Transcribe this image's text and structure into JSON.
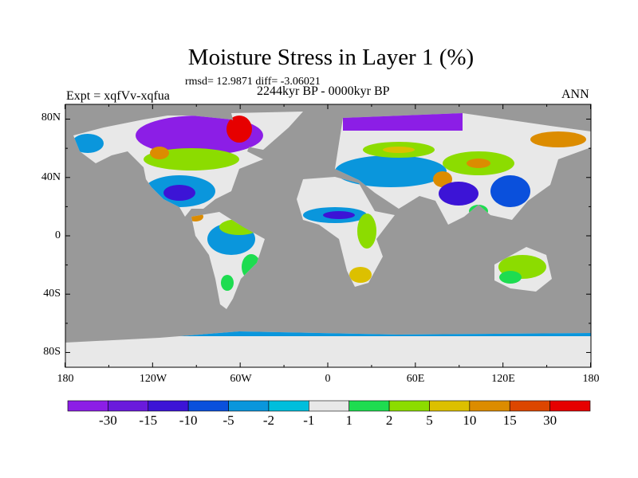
{
  "title": "Moisture Stress in Layer 1 (%)",
  "stats": "rmsd= 12.9871 diff= -3.06021",
  "period": "2244kyr BP - 0000kyr BP",
  "experiment": "Expt = xqfVv-xqfua",
  "season": "ANN",
  "lat_labels": [
    "80N",
    "40N",
    "0",
    "40S",
    "80S"
  ],
  "lon_labels": [
    "180",
    "120W",
    "60W",
    "0",
    "60E",
    "120E",
    "180"
  ],
  "colorbar": {
    "labels": [
      "-30",
      "-15",
      "-10",
      "-5",
      "-2",
      "-1",
      "1",
      "2",
      "5",
      "10",
      "15",
      "30"
    ],
    "colors": [
      "#8c1ee6",
      "#6a1adc",
      "#3c14d6",
      "#0a50dc",
      "#0a96dc",
      "#00bedc",
      "#e8e8e8",
      "#1edc50",
      "#8cdc00",
      "#dcc000",
      "#dc8c00",
      "#dc4600",
      "#e60000"
    ]
  },
  "ocean_color": "#999999"
}
